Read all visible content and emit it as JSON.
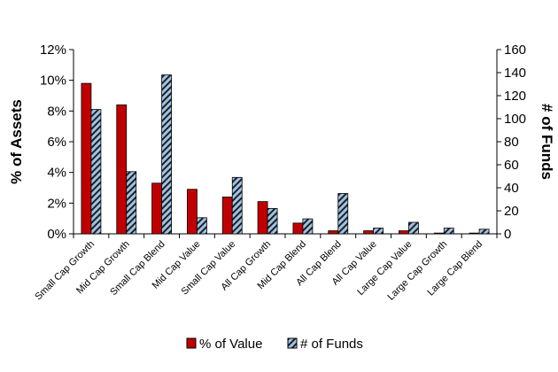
{
  "chart_data": {
    "type": "bar",
    "categories": [
      "Small Cap Growth",
      "Mid Cap Growth",
      "Small Cap Blend",
      "Mid Cap Value",
      "Small Cap Value",
      "All Cap Growth",
      "Mid Cap Blend",
      "All Cap Blend",
      "All Cap Value",
      "Large Cap Value",
      "Large Cap Growth",
      "Large Cap Blend"
    ],
    "series": [
      {
        "name": "% of Value",
        "axis": "left",
        "color": "#c00000",
        "values": [
          9.8,
          8.4,
          3.3,
          2.9,
          2.4,
          2.1,
          0.7,
          0.2,
          0.2,
          0.2,
          0.05,
          0.05
        ]
      },
      {
        "name": "# of Funds",
        "axis": "right",
        "color": "#9dc3e6",
        "pattern": "hatched",
        "values": [
          108,
          54,
          138,
          14,
          49,
          22,
          13,
          35,
          5,
          10,
          5,
          4
        ]
      }
    ],
    "ylabel": "% of Assets",
    "ylabel_right": "# of Funds",
    "ylim": [
      0,
      12
    ],
    "ylim_right": [
      0,
      160
    ],
    "yticks": [
      "0%",
      "2%",
      "4%",
      "6%",
      "8%",
      "10%",
      "12%"
    ],
    "yticks_right": [
      "0",
      "20",
      "40",
      "60",
      "80",
      "100",
      "120",
      "140",
      "160"
    ],
    "grid": false,
    "legend_position": "bottom"
  }
}
